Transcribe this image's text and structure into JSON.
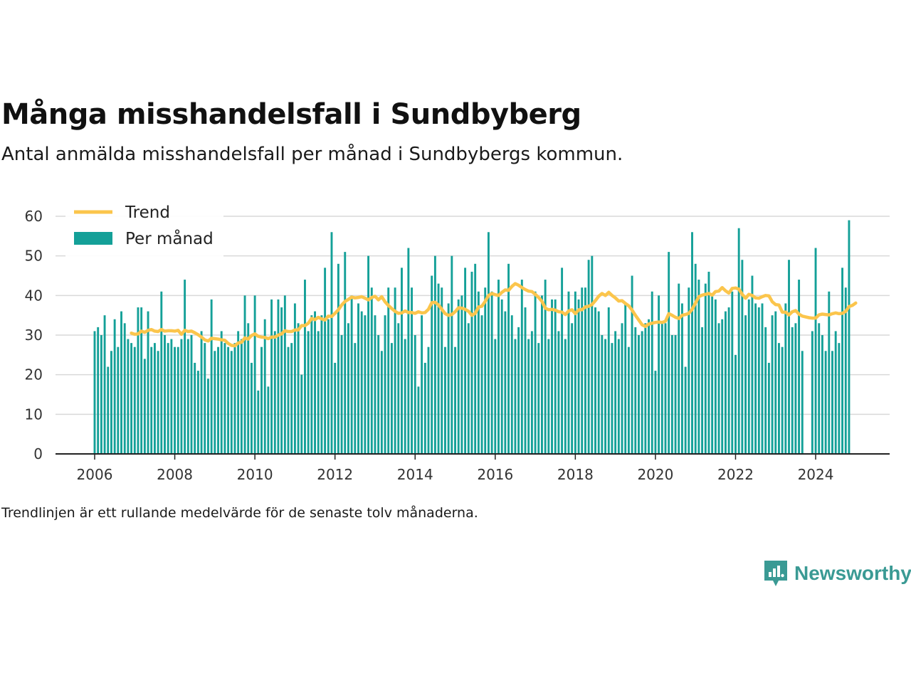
{
  "title": "Många misshandelsfall i Sundbyberg",
  "subtitle": "Antal anmälda misshandelsfall per månad i Sundbybergs kommun.",
  "note": "Trendlinjen är ett rullande medelvärde för de senaste tolv månaderna.",
  "brand": {
    "name": "Newsworthy",
    "color": "#3a9a94"
  },
  "colors": {
    "bar": "#14a098",
    "trend": "#fbc54c",
    "grid": "#d9d9d9",
    "axis": "#222222"
  },
  "chart_data": {
    "type": "bar",
    "title": "Många misshandelsfall i Sundbyberg",
    "xlabel": "",
    "ylabel": "",
    "ylim": [
      0,
      60
    ],
    "yticks": [
      "0",
      "10",
      "20",
      "30",
      "40",
      "50",
      "60"
    ],
    "xticks": [
      "2006",
      "2008",
      "2010",
      "2012",
      "2014",
      "2016",
      "2018",
      "2020",
      "2022",
      "2024"
    ],
    "grid": true,
    "legend_position": "top-left",
    "start": "2006-01",
    "end": "2024-11",
    "series": [
      {
        "name": "Per månad",
        "type": "bar",
        "values": [
          31,
          32,
          30,
          35,
          22,
          26,
          34,
          27,
          36,
          33,
          29,
          28,
          27,
          37,
          37,
          24,
          36,
          27,
          28,
          26,
          41,
          30,
          28,
          29,
          27,
          27,
          29,
          44,
          29,
          30,
          23,
          21,
          31,
          28,
          19,
          39,
          26,
          27,
          31,
          28,
          27,
          26,
          28,
          31,
          29,
          40,
          33,
          23,
          40,
          16,
          27,
          34,
          17,
          39,
          31,
          39,
          37,
          40,
          27,
          28,
          38,
          33,
          20,
          44,
          31,
          35,
          36,
          31,
          35,
          47,
          34,
          56,
          23,
          48,
          30,
          51,
          33,
          40,
          28,
          38,
          36,
          35,
          50,
          42,
          35,
          30,
          26,
          35,
          42,
          28,
          42,
          33,
          47,
          29,
          52,
          42,
          30,
          17,
          35,
          23,
          27,
          45,
          50,
          43,
          42,
          27,
          38,
          50,
          27,
          39,
          40,
          47,
          33,
          46,
          48,
          41,
          35,
          42,
          56,
          41,
          29,
          44,
          39,
          36,
          48,
          35,
          29,
          32,
          44,
          37,
          29,
          31,
          41,
          28,
          40,
          44,
          29,
          39,
          39,
          31,
          47,
          29,
          41,
          33,
          41,
          39,
          42,
          42,
          49,
          50,
          37,
          36,
          30,
          29,
          37,
          28,
          31,
          29,
          33,
          38,
          27,
          45,
          32,
          30,
          31,
          33,
          34,
          41,
          21,
          40,
          33,
          33,
          51,
          30,
          30,
          43,
          38,
          22,
          42,
          56,
          48,
          44,
          32,
          43,
          46,
          40,
          39,
          33,
          34,
          36,
          37,
          41,
          25,
          57,
          49,
          35,
          39,
          45,
          38,
          37,
          38,
          32,
          23,
          35,
          36,
          28,
          27,
          38,
          49,
          32,
          33,
          44,
          26,
          0,
          0,
          31,
          52,
          33,
          30,
          26,
          41,
          26,
          31,
          28,
          47,
          42,
          59
        ]
      },
      {
        "name": "Trend",
        "type": "line",
        "values": [
          null,
          null,
          null,
          null,
          null,
          null,
          null,
          null,
          null,
          null,
          null,
          30.5,
          30.2,
          30.3,
          31.0,
          30.7,
          31.2,
          31.4,
          31.0,
          30.9,
          31.4,
          31.0,
          31.1,
          31.1,
          31.0,
          31.2,
          30.2,
          31.2,
          30.9,
          31.0,
          30.6,
          30.1,
          29.5,
          28.8,
          28.5,
          29.2,
          29.1,
          29.0,
          28.8,
          28.7,
          27.9,
          27.4,
          27.3,
          28.0,
          28.2,
          29.3,
          29.0,
          29.9,
          30.3,
          29.7,
          29.5,
          29.4,
          29.1,
          29.5,
          29.5,
          30.0,
          30.3,
          31.1,
          30.9,
          30.9,
          31.3,
          31.3,
          32.4,
          32.4,
          33.0,
          34.2,
          33.9,
          34.5,
          34.1,
          33.8,
          34.8,
          34.7,
          35.5,
          36.4,
          37.6,
          38.5,
          39.0,
          39.6,
          39.4,
          39.5,
          39.7,
          39.3,
          38.9,
          39.5,
          39.8,
          38.9,
          39.7,
          38.4,
          37.5,
          36.7,
          36.0,
          35.5,
          35.6,
          36.1,
          35.7,
          35.7,
          35.5,
          35.9,
          35.6,
          35.7,
          36.5,
          38.2,
          38.3,
          37.6,
          36.5,
          35.4,
          35.0,
          35.2,
          35.9,
          36.9,
          36.8,
          36.5,
          36.0,
          35.0,
          35.5,
          37.1,
          37.3,
          38.5,
          40.0,
          40.5,
          40.2,
          40.0,
          40.8,
          41.4,
          41.3,
          42.3,
          43.0,
          42.6,
          42.0,
          41.5,
          41.1,
          41.0,
          40.3,
          39.5,
          38.5,
          36.8,
          36.4,
          36.5,
          36.3,
          35.9,
          35.8,
          35.2,
          36.1,
          36.4,
          35.4,
          36.4,
          36.4,
          37.1,
          37.3,
          37.7,
          38.7,
          39.8,
          40.5,
          40.0,
          40.8,
          40.0,
          39.4,
          38.6,
          38.7,
          38.0,
          37.4,
          36.3,
          35.0,
          33.8,
          32.6,
          32.2,
          32.8,
          33.0,
          33.2,
          33.3,
          33.2,
          33.5,
          35.4,
          35.0,
          34.5,
          34.2,
          35.0,
          35.2,
          35.5,
          36.5,
          38.1,
          39.7,
          40.1,
          40.3,
          40.5,
          40.1,
          41.0,
          41.1,
          42.0,
          41.2,
          40.6,
          41.8,
          41.9,
          41.6,
          40.3,
          39.3,
          40.3,
          40.0,
          39.4,
          39.3,
          39.7,
          40.0,
          39.9,
          38.4,
          37.7,
          37.6,
          35.8,
          35.8,
          35.1,
          35.9,
          36.2,
          35.3,
          34.8,
          34.6,
          34.4,
          34.3,
          34.3,
          35.1,
          35.3,
          35.2,
          35.1,
          35.4,
          35.6,
          35.4,
          35.5,
          36.0,
          37.2,
          37.5,
          38.1
        ]
      }
    ]
  }
}
